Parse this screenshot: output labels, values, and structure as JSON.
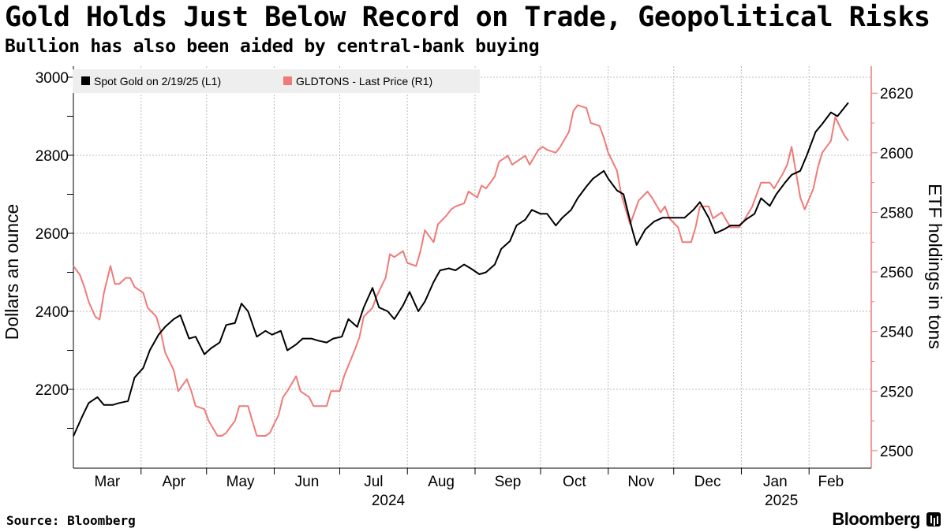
{
  "header": {
    "title": "Gold Holds Just Below Record on Trade, Geopolitical Risks",
    "subtitle": "Bullion has also been aided by central-bank buying"
  },
  "footer": {
    "source": "Source: Bloomberg",
    "brand": "Bloomberg"
  },
  "colors": {
    "gold": "#000000",
    "etf": "#f07a78",
    "grid": "#bbbbbb"
  },
  "chart_data": {
    "type": "line",
    "title": "Gold Holds Just Below Record on Trade, Geopolitical Risks",
    "subtitle": "Bullion has also been aided by central-bank buying",
    "x_range": [
      "2024-03-01",
      "2025-02-19"
    ],
    "x_tick_labels": [
      "Mar",
      "Apr",
      "May",
      "Jun",
      "Jul",
      "Aug",
      "Sep",
      "Oct",
      "Nov",
      "Dec",
      "Jan",
      "Feb"
    ],
    "x_year_labels": [
      "2024",
      "2025"
    ],
    "left_axis": {
      "label": "Dollars an ounce",
      "ylim": [
        2000,
        3000
      ],
      "ticks": [
        "2200",
        "2400",
        "2600",
        "2800",
        "3000"
      ]
    },
    "right_axis": {
      "label": "ETF holdings in tons",
      "ylim": [
        2496,
        2628
      ],
      "ticks": [
        "2500",
        "2520",
        "2540",
        "2560",
        "2580",
        "2600",
        "2620"
      ]
    },
    "legend": {
      "position": "top-left"
    },
    "grid": true,
    "series": [
      {
        "name": "Spot Gold on 2/19/25 (L1)",
        "axis": "left",
        "color": "#000000",
        "x": [
          "2024-03-01",
          "2024-03-05",
          "2024-03-08",
          "2024-03-12",
          "2024-03-15",
          "2024-03-19",
          "2024-03-22",
          "2024-03-26",
          "2024-03-29",
          "2024-04-02",
          "2024-04-05",
          "2024-04-09",
          "2024-04-12",
          "2024-04-16",
          "2024-04-19",
          "2024-04-23",
          "2024-04-26",
          "2024-04-30",
          "2024-05-03",
          "2024-05-07",
          "2024-05-10",
          "2024-05-14",
          "2024-05-17",
          "2024-05-20",
          "2024-05-24",
          "2024-05-28",
          "2024-05-31",
          "2024-06-04",
          "2024-06-07",
          "2024-06-11",
          "2024-06-14",
          "2024-06-18",
          "2024-06-21",
          "2024-06-25",
          "2024-06-28",
          "2024-07-02",
          "2024-07-05",
          "2024-07-09",
          "2024-07-12",
          "2024-07-16",
          "2024-07-19",
          "2024-07-23",
          "2024-07-26",
          "2024-07-30",
          "2024-08-02",
          "2024-08-06",
          "2024-08-09",
          "2024-08-13",
          "2024-08-16",
          "2024-08-20",
          "2024-08-23",
          "2024-08-27",
          "2024-08-30",
          "2024-09-03",
          "2024-09-06",
          "2024-09-10",
          "2024-09-13",
          "2024-09-17",
          "2024-09-20",
          "2024-09-24",
          "2024-09-27",
          "2024-10-01",
          "2024-10-04",
          "2024-10-08",
          "2024-10-11",
          "2024-10-15",
          "2024-10-18",
          "2024-10-22",
          "2024-10-25",
          "2024-10-30",
          "2024-11-01",
          "2024-11-05",
          "2024-11-08",
          "2024-11-12",
          "2024-11-14",
          "2024-11-18",
          "2024-11-22",
          "2024-11-26",
          "2024-11-29",
          "2024-12-03",
          "2024-12-06",
          "2024-12-10",
          "2024-12-13",
          "2024-12-17",
          "2024-12-20",
          "2024-12-24",
          "2024-12-27",
          "2024-12-31",
          "2025-01-03",
          "2025-01-07",
          "2025-01-10",
          "2025-01-14",
          "2025-01-17",
          "2025-01-21",
          "2025-01-24",
          "2025-01-28",
          "2025-01-31",
          "2025-02-04",
          "2025-02-07",
          "2025-02-11",
          "2025-02-14",
          "2025-02-19"
        ],
        "values": [
          2080,
          2130,
          2165,
          2180,
          2160,
          2160,
          2165,
          2170,
          2230,
          2255,
          2300,
          2340,
          2360,
          2380,
          2390,
          2330,
          2335,
          2290,
          2305,
          2320,
          2365,
          2370,
          2420,
          2400,
          2335,
          2350,
          2340,
          2350,
          2300,
          2315,
          2330,
          2330,
          2325,
          2320,
          2330,
          2335,
          2380,
          2360,
          2410,
          2460,
          2410,
          2400,
          2380,
          2415,
          2450,
          2400,
          2425,
          2475,
          2505,
          2510,
          2505,
          2520,
          2510,
          2495,
          2500,
          2520,
          2560,
          2580,
          2620,
          2635,
          2660,
          2650,
          2650,
          2620,
          2640,
          2660,
          2690,
          2720,
          2740,
          2760,
          2740,
          2710,
          2700,
          2610,
          2570,
          2610,
          2630,
          2640,
          2640,
          2640,
          2640,
          2660,
          2680,
          2640,
          2600,
          2610,
          2620,
          2620,
          2635,
          2650,
          2690,
          2670,
          2700,
          2730,
          2750,
          2760,
          2800,
          2860,
          2880,
          2910,
          2900,
          2935
        ]
      },
      {
        "name": "GLDTONS - Last Price (R1)",
        "axis": "right",
        "color": "#f07a78",
        "x": [
          "2024-03-01",
          "2024-03-04",
          "2024-03-06",
          "2024-03-08",
          "2024-03-11",
          "2024-03-13",
          "2024-03-15",
          "2024-03-18",
          "2024-03-20",
          "2024-03-22",
          "2024-03-25",
          "2024-03-27",
          "2024-03-29",
          "2024-04-02",
          "2024-04-04",
          "2024-04-08",
          "2024-04-10",
          "2024-04-12",
          "2024-04-16",
          "2024-04-18",
          "2024-04-22",
          "2024-04-24",
          "2024-04-26",
          "2024-04-30",
          "2024-05-02",
          "2024-05-06",
          "2024-05-08",
          "2024-05-10",
          "2024-05-14",
          "2024-05-16",
          "2024-05-20",
          "2024-05-22",
          "2024-05-24",
          "2024-05-28",
          "2024-05-30",
          "2024-06-03",
          "2024-06-05",
          "2024-06-07",
          "2024-06-11",
          "2024-06-13",
          "2024-06-17",
          "2024-06-19",
          "2024-06-21",
          "2024-06-25",
          "2024-06-27",
          "2024-07-01",
          "2024-07-03",
          "2024-07-08",
          "2024-07-10",
          "2024-07-12",
          "2024-07-16",
          "2024-07-18",
          "2024-07-22",
          "2024-07-24",
          "2024-07-26",
          "2024-07-30",
          "2024-08-01",
          "2024-08-05",
          "2024-08-07",
          "2024-08-09",
          "2024-08-13",
          "2024-08-15",
          "2024-08-19",
          "2024-08-21",
          "2024-08-23",
          "2024-08-27",
          "2024-08-29",
          "2024-09-02",
          "2024-09-04",
          "2024-09-06",
          "2024-09-10",
          "2024-09-12",
          "2024-09-16",
          "2024-09-18",
          "2024-09-20",
          "2024-09-24",
          "2024-09-26",
          "2024-09-30",
          "2024-10-02",
          "2024-10-04",
          "2024-10-08",
          "2024-10-10",
          "2024-10-14",
          "2024-10-16",
          "2024-10-18",
          "2024-10-22",
          "2024-10-24",
          "2024-10-28",
          "2024-10-30",
          "2024-11-01",
          "2024-11-05",
          "2024-11-07",
          "2024-11-11",
          "2024-11-13",
          "2024-11-15",
          "2024-11-19",
          "2024-11-21",
          "2024-11-25",
          "2024-11-27",
          "2024-11-29",
          "2024-12-03",
          "2024-12-05",
          "2024-12-09",
          "2024-12-11",
          "2024-12-13",
          "2024-12-17",
          "2024-12-19",
          "2024-12-23",
          "2024-12-27",
          "2024-12-31",
          "2025-01-02",
          "2025-01-06",
          "2025-01-08",
          "2025-01-10",
          "2025-01-14",
          "2025-01-16",
          "2025-01-20",
          "2025-01-22",
          "2025-01-24",
          "2025-01-28",
          "2025-01-30",
          "2025-02-03",
          "2025-02-05",
          "2025-02-07",
          "2025-02-11",
          "2025-02-13",
          "2025-02-17",
          "2025-02-19"
        ],
        "values": [
          2562,
          2559,
          2555,
          2550,
          2545,
          2544,
          2553,
          2562,
          2556,
          2556,
          2558,
          2558,
          2555,
          2553,
          2548,
          2545,
          2540,
          2533,
          2527,
          2520,
          2524,
          2520,
          2515,
          2514,
          2510,
          2505,
          2505,
          2506,
          2510,
          2515,
          2515,
          2510,
          2505,
          2505,
          2506,
          2512,
          2518,
          2520,
          2525,
          2520,
          2518,
          2515,
          2515,
          2515,
          2520,
          2520,
          2525,
          2534,
          2538,
          2545,
          2548,
          2552,
          2558,
          2566,
          2565,
          2567,
          2563,
          2562,
          2567,
          2574,
          2570,
          2576,
          2579,
          2581,
          2582,
          2583,
          2587,
          2585,
          2589,
          2588,
          2592,
          2597,
          2599,
          2596,
          2597,
          2599,
          2596,
          2601,
          2602,
          2601,
          2600,
          2602,
          2607,
          2614,
          2616,
          2615,
          2610,
          2609,
          2605,
          2600,
          2594,
          2586,
          2576,
          2580,
          2584,
          2587,
          2585,
          2580,
          2582,
          2578,
          2575,
          2570,
          2570,
          2575,
          2582,
          2582,
          2578,
          2580,
          2575,
          2575,
          2577,
          2582,
          2586,
          2590,
          2590,
          2588,
          2593,
          2596,
          2602,
          2585,
          2581,
          2588,
          2595,
          2600,
          2604,
          2612,
          2606,
          2604
        ]
      }
    ]
  }
}
